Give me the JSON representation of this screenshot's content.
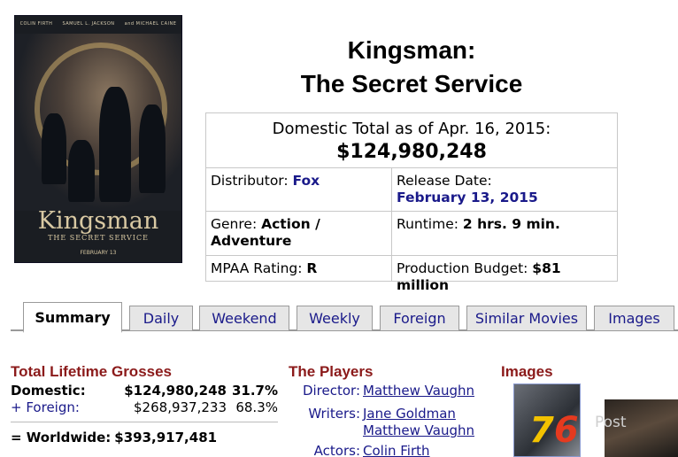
{
  "poster": {
    "cast": [
      "COLIN FIRTH",
      "SAMUEL L. JACKSON",
      "and MICHAEL CAINE"
    ],
    "title": "Kingsman",
    "subtitle": "THE SECRET SERVICE",
    "date": "FEBRUARY 13"
  },
  "movie": {
    "title_line1": "Kingsman:",
    "title_line2": "The Secret Service"
  },
  "info": {
    "total_label": "Domestic Total as of Apr. 16, 2015:",
    "total_value": "$124,980,248",
    "distributor_label": "Distributor: ",
    "distributor_value": "Fox",
    "release_label": "Release Date:",
    "release_value": "February 13, 2015",
    "genre_label": "Genre: ",
    "genre_value": "Action / Adventure",
    "runtime_label": "Runtime: ",
    "runtime_value": "2 hrs. 9 min.",
    "rating_label": "MPAA Rating: ",
    "rating_value": "R",
    "budget_label": "Production Budget: ",
    "budget_value": "$81 million"
  },
  "tabs": [
    "Summary",
    "Daily",
    "Weekend",
    "Weekly",
    "Foreign",
    "Similar Movies",
    "Images"
  ],
  "grosses": {
    "heading": "Total Lifetime Grosses",
    "domestic_label": "Domestic:",
    "domestic_value": "$124,980,248",
    "domestic_pct": "31.7%",
    "foreign_label": "+ Foreign:",
    "foreign_value": "$268,937,233",
    "foreign_pct": "68.3%",
    "worldwide_label": "= Worldwide:",
    "worldwide_value": "$393,917,481"
  },
  "players": {
    "heading": "The Players",
    "director_label": "Director:",
    "director_value": "Matthew Vaughn",
    "writers_label": "Writers:",
    "writer1": "Jane Goldman",
    "writer2": "Matthew Vaughn",
    "actors_label": "Actors:",
    "actor1": "Colin Firth"
  },
  "images": {
    "heading": "Images"
  },
  "watermark": {
    "num": "7",
    "num2": "6",
    "text": "Post"
  }
}
